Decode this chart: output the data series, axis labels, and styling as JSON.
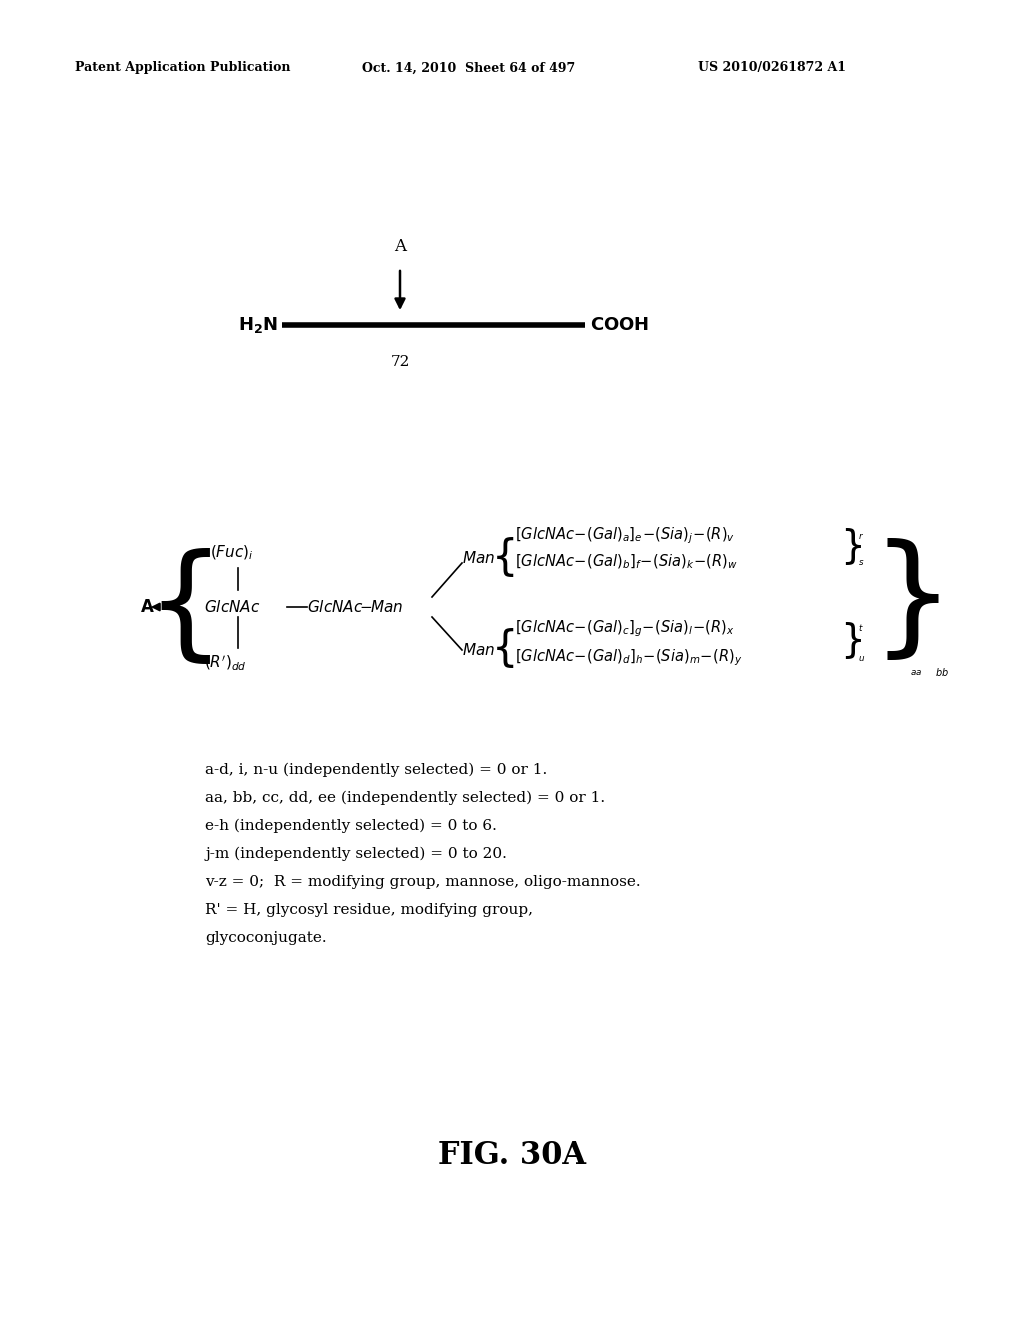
{
  "header_left": "Patent Application Publication",
  "header_mid": "Oct. 14, 2010  Sheet 64 of 497",
  "header_right": "US 2010/0261872 A1",
  "fig_label": "FIG. 30A",
  "background": "#ffffff",
  "text_color": "#000000"
}
